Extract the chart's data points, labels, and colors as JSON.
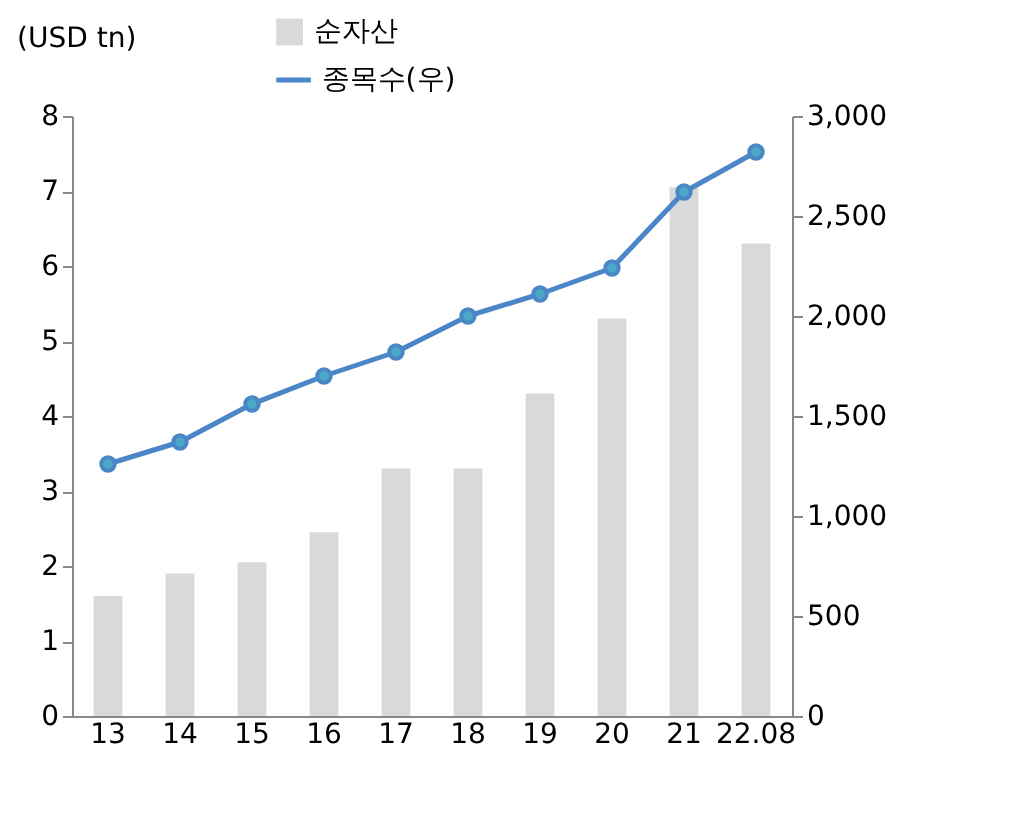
{
  "chart_data": {
    "type": "bar",
    "ylabel": "(USD tn)",
    "categories": [
      "13",
      "14",
      "15",
      "16",
      "17",
      "18",
      "19",
      "20",
      "21",
      "22.08"
    ],
    "series": [
      {
        "name": "순자산",
        "color": "#d9d9d9",
        "values": [
          1.6,
          1.9,
          2.05,
          2.45,
          3.3,
          3.3,
          4.3,
          5.3,
          7.05,
          6.3
        ]
      },
      {
        "name": "종목수(우)",
        "type": "line",
        "axis": "y2",
        "color": "#4a86c8",
        "values": [
          1260,
          1370,
          1560,
          1700,
          1820,
          2000,
          2110,
          2240,
          2620,
          2820
        ]
      }
    ],
    "ylim": [
      0,
      8
    ],
    "yticks": [
      0,
      1,
      2,
      3,
      4,
      5,
      6,
      7,
      8
    ],
    "y2lim": [
      0,
      3000
    ],
    "y2ticks": [
      0,
      500,
      {
        "value": 1000,
        "label": "1,000"
      },
      {
        "value": 1500,
        "label": "1,500"
      },
      {
        "value": 2000,
        "label": "2,000"
      },
      {
        "value": 2500,
        "label": "2,500"
      },
      {
        "value": 3000,
        "label": "3,000"
      }
    ],
    "marker": "circle",
    "line_style": "solid",
    "grid": false,
    "legend": "top"
  }
}
